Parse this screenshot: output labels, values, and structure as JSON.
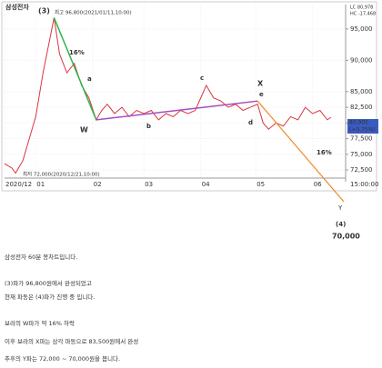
{
  "chart_data": {
    "type": "line",
    "title": "삼성전자",
    "x": [
      14,
      18,
      20,
      24,
      28,
      31,
      35,
      41,
      44,
      48,
      52,
      56,
      60,
      64,
      67,
      70,
      74,
      78,
      82,
      86,
      90,
      94,
      98,
      102,
      106,
      110,
      114,
      118,
      121,
      124,
      128,
      132,
      136,
      140,
      144,
      148,
      152,
      155,
      158,
      162,
      166,
      170,
      174,
      178,
      182,
      186,
      190,
      192
    ],
    "series": [
      {
        "name": "삼성전자",
        "color": "#d9363e",
        "values": [
          73500,
          72800,
          72000,
          74000,
          78000,
          81000,
          88000,
          96800,
          91000,
          88000,
          89500,
          86000,
          84000,
          80500,
          82000,
          83000,
          81500,
          82500,
          81000,
          82000,
          81500,
          82000,
          80500,
          81500,
          81000,
          82000,
          81500,
          82000,
          84000,
          86000,
          84000,
          83500,
          82500,
          83000,
          82000,
          82500,
          83000,
          80000,
          79000,
          80000,
          79500,
          81000,
          80500,
          82500,
          81500,
          82000,
          80500,
          80900
        ]
      }
    ],
    "xlim": [
      14,
      200
    ],
    "ylim": [
      71200,
      98900
    ],
    "xticks": [
      {
        "value": 14,
        "label": "2020/12"
      },
      {
        "value": 31,
        "label": "01"
      },
      {
        "value": 62,
        "label": "02"
      },
      {
        "value": 90,
        "label": "03"
      },
      {
        "value": 121,
        "label": "04"
      },
      {
        "value": 151,
        "label": "05"
      },
      {
        "value": 182,
        "label": "06"
      }
    ],
    "yticks": [
      {
        "value": 95000,
        "label": "95,000"
      },
      {
        "value": 90000,
        "label": "90,000"
      },
      {
        "value": 85000,
        "label": "85,000"
      },
      {
        "value": 82500,
        "label": "82,500"
      },
      {
        "value": 80000,
        "label": "80,000"
      },
      {
        "value": 77500,
        "label": "77,500"
      },
      {
        "value": 75000,
        "label": "75,000"
      },
      {
        "value": 72500,
        "label": "72,500"
      }
    ],
    "grid": true,
    "time_label": "15:00:00",
    "legend": [
      "LC 80,978",
      "HC -17,468"
    ],
    "current_price": "80,900",
    "current_change": "(+0.75%)",
    "high_label": "최고 96,800(2021/01/11,10:00)",
    "low_label": "최저 72,000(2020/12/21,10:00)",
    "annotations": [
      "(3)",
      "a",
      "b",
      "c",
      "d",
      "e",
      "W",
      "X",
      "Y",
      "(4)",
      "16%",
      "16%",
      "70,000"
    ]
  },
  "text": [
    "삼성전자 60분 봉차트입니다.",
    "(3)파가 96,800원에서 완성되었고",
    "현재 파동은 (4)파가 진행 중 입니다.",
    "보라의 W파가 약 16% 하락",
    "이후 보라의 X파는 삼각 파동으로 83,500원에서 완성",
    "추후의 Y파는 72,000 ~ 70,000원을 봅니다."
  ]
}
